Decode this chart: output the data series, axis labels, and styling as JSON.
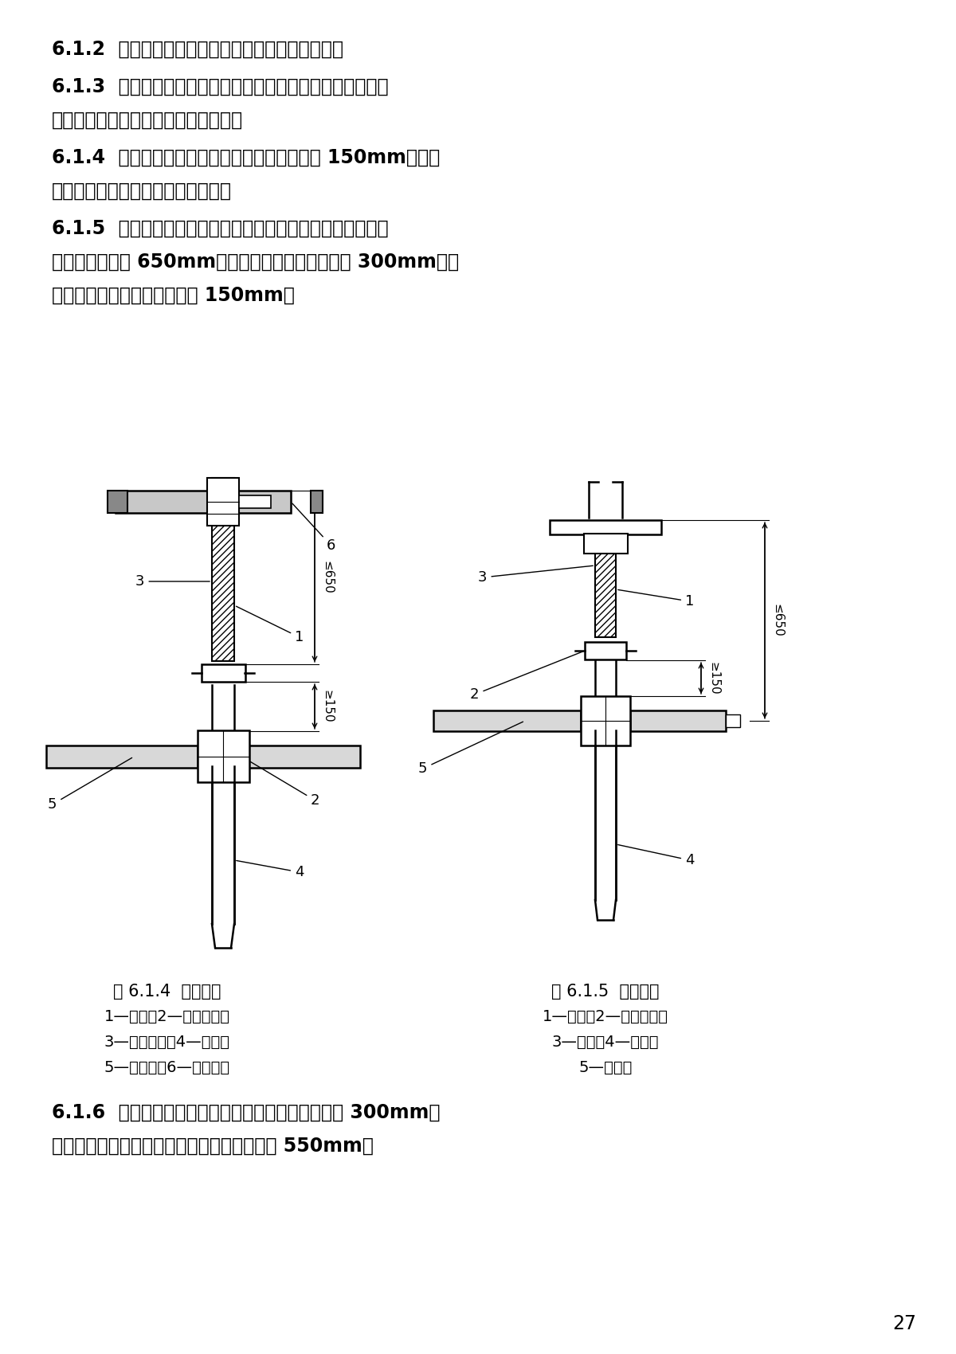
{
  "page_bg": "#ffffff",
  "text_color": "#000000",
  "paragraph_612": "6.1.2  水平杆的两端应通过插头与立杆上插座相连。",
  "paragraph_613_1": "6.1.3  承重龙骨应设置于架体顶层。当水平杆的刚度验算不满",
  "paragraph_613_2": "足上部荷载要求时，宜选用承重龙骨。",
  "paragraph_614_1": "6.1.4  可调顶撑插人立杆内的丝杆长度不应小于 150mm，可调",
  "paragraph_614_2": "顶撑应键人连接水平杆或承重龙骨。",
  "paragraph_615_1": "6.1.5  如采用可调托座的形式，可调托座伸出顶层水平杆的自",
  "paragraph_615_2": "由长度不得超过 650mm，且丝杆外露长度不得超过 300mm，可",
  "paragraph_615_3": "调托座插人立杆长度不得小于 150mm。",
  "fig614_label": "图 6.1.4  可调顶撑",
  "fig614_legend1": "1—丝杆；2—调节螺母；",
  "fig614_legend2": "3—可调插座；4—立杆；",
  "fig614_legend3": "5—水平杆；6—承重龙骨",
  "fig615_label": "图 6.1.5  可调托座",
  "fig615_legend1": "1—丝杆；2—调节螺母；",
  "fig615_legend2": "3—托座；4—立杆；",
  "fig615_legend3": "5—水平杆",
  "paragraph_616_1": "6.1.6  模板支架可调底座调节丝杆外露长度不应大于 300mm，",
  "paragraph_616_2": "作为扫地杆的最底层水平杆离地高度不应大于 550mm。",
  "page_number": "27"
}
